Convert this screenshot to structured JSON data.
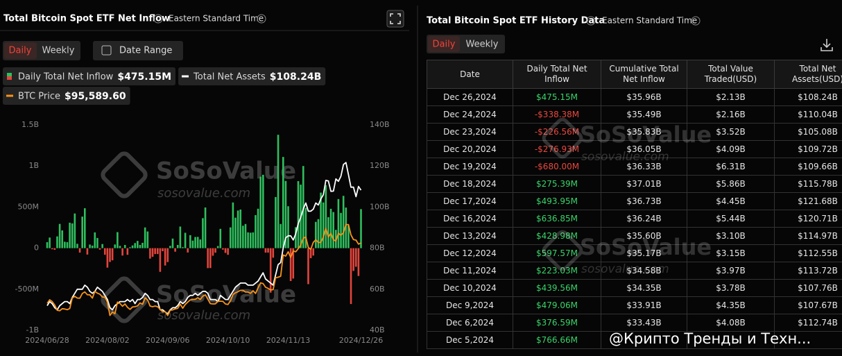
{
  "header": {
    "title": "Total Bitcoin Spot ETF Net Inflow",
    "timezone": "Eastern Standard Time",
    "tabs": [
      "Daily",
      "Weekly"
    ],
    "date_range": "Date Range"
  },
  "watermark": {
    "brand": "SoSoValue",
    "url": "sosovalue.com"
  },
  "chart_data": {
    "type": "combo",
    "categories": [
      "2024/06/28",
      null,
      null,
      null,
      null,
      null,
      null,
      null,
      null,
      null,
      null,
      null,
      null,
      null,
      null,
      null,
      null,
      null,
      null,
      null,
      null,
      null,
      null,
      null,
      "2024/08/02",
      null,
      null,
      null,
      null,
      null,
      null,
      null,
      null,
      null,
      null,
      null,
      null,
      null,
      null,
      null,
      null,
      null,
      null,
      null,
      null,
      null,
      null,
      null,
      "2024/09/06",
      null,
      null,
      null,
      null,
      null,
      null,
      null,
      null,
      null,
      null,
      null,
      null,
      null,
      null,
      null,
      null,
      null,
      null,
      null,
      null,
      null,
      null,
      null,
      "2024/10/10",
      null,
      null,
      null,
      null,
      null,
      null,
      null,
      null,
      null,
      null,
      null,
      null,
      null,
      null,
      null,
      null,
      null,
      null,
      null,
      null,
      null,
      null,
      null,
      "2024/11/13",
      null,
      null,
      null,
      null,
      null,
      null,
      null,
      null,
      null,
      null,
      null,
      null,
      null,
      null,
      null,
      null,
      null,
      null,
      null,
      null,
      null,
      null,
      null,
      null,
      null,
      null,
      null,
      null,
      "2024/12/26"
    ],
    "series": [
      {
        "name": "Daily Total Net Inflow",
        "type": "bar",
        "latest": "$475.15M",
        "color": "#2fbf5e",
        "negative_color": "#e3453d",
        "values": [
          73,
          129,
          -13,
          -20,
          143,
          295,
          216,
          78,
          73,
          310,
          301,
          422,
          53,
          -54,
          384,
          486,
          -78,
          44,
          31,
          192,
          124,
          -18,
          50,
          -80,
          -237,
          -168,
          -148,
          45,
          195,
          28,
          -90,
          39,
          -81,
          11,
          33,
          62,
          88,
          39,
          65,
          252,
          203,
          -127,
          -105,
          -72,
          -72,
          -288,
          -37,
          -211,
          -169,
          28,
          117,
          -43,
          39,
          263,
          12,
          187,
          -53,
          158,
          92,
          136,
          137,
          106,
          365,
          495,
          -243,
          -242,
          -92,
          -55,
          26,
          235,
          -18,
          -58,
          -81,
          253,
          556,
          371,
          458,
          470,
          273,
          294,
          192,
          188,
          192,
          402,
          480,
          870,
          893,
          -54,
          -54,
          -541,
          -116,
          622,
          1380,
          294,
          1110,
          818,
          510,
          -400,
          -370,
          255,
          816,
          773,
          1000,
          490,
          -438,
          -122,
          -90,
          320,
          353,
          676,
          556,
          766.66,
          376.59,
          479.06,
          439.56,
          223.03,
          597.57,
          428.98,
          636.85,
          493.95,
          275.39,
          -680,
          -276.93,
          -226.56,
          -338.38,
          475.15
        ]
      },
      {
        "name": "Total Net Assets",
        "type": "line",
        "axis": "y2",
        "latest": "$108.24B",
        "color": "#ffffff",
        "values": [
          52,
          54,
          53,
          51,
          50,
          52,
          53,
          54,
          54,
          53,
          56,
          58,
          60,
          60,
          60,
          62,
          61,
          59,
          58,
          59,
          61,
          60,
          59,
          57,
          55,
          51,
          50,
          52,
          53,
          54,
          54,
          54,
          55,
          54,
          55,
          53,
          55,
          55,
          56,
          58,
          57,
          55,
          55,
          54,
          54,
          50,
          50,
          49,
          48,
          50,
          51,
          51,
          52,
          54,
          53,
          54,
          56,
          57,
          57,
          58,
          57,
          58,
          59,
          59,
          58,
          55,
          55,
          55,
          54,
          57,
          56,
          55,
          55,
          57,
          59,
          61,
          62,
          63,
          63,
          63,
          62,
          62,
          62,
          63,
          64,
          66,
          68,
          65,
          64,
          63,
          62,
          67,
          72,
          73,
          80,
          85,
          86,
          86,
          84,
          87,
          92,
          95,
          99,
          102,
          98,
          98,
          99,
          102,
          101,
          104,
          106,
          113,
          112.74,
          107.67,
          107.76,
          113.72,
          112.55,
          114.97,
          120.71,
          121.68,
          115.78,
          109.66,
          109.72,
          105.08,
          110.04,
          108.24
        ]
      },
      {
        "name": "BTC Price",
        "type": "line",
        "axis": "y3",
        "latest": "$95,589.60",
        "color": "#f7931a",
        "values": [
          61000,
          63000,
          62000,
          60000,
          57000,
          56700,
          57900,
          57700,
          57300,
          58000,
          64000,
          65000,
          64000,
          63900,
          66600,
          67500,
          65900,
          65800,
          64000,
          67800,
          66800,
          66200,
          64600,
          64500,
          61400,
          54000,
          56000,
          55000,
          61700,
          60900,
          59300,
          60600,
          58700,
          57500,
          58900,
          59000,
          59500,
          61200,
          60400,
          64100,
          62900,
          59400,
          59000,
          59400,
          59000,
          57500,
          56100,
          56200,
          54000,
          57000,
          57200,
          57800,
          58100,
          60500,
          58200,
          60300,
          61700,
          62900,
          63200,
          63300,
          64200,
          63200,
          65100,
          65800,
          63300,
          60800,
          60600,
          60700,
          62100,
          62200,
          62100,
          60600,
          60300,
          62400,
          66000,
          67000,
          67600,
          68400,
          68400,
          67400,
          67400,
          66700,
          68200,
          66600,
          69900,
          72700,
          72300,
          70200,
          69500,
          68700,
          68800,
          75600,
          75900,
          76500,
          88700,
          88000,
          90500,
          87300,
          91000,
          90500,
          92300,
          94300,
          98300,
          98900,
          93000,
          91900,
          95900,
          97400,
          95800,
          95900,
          99000,
          103900,
          99000,
          101100,
          97400,
          96700,
          101100,
          100000,
          101400,
          106100,
          106100,
          100200,
          97500,
          97200,
          94900,
          95589.6
        ]
      }
    ],
    "ylim": [
      -1000,
      1500
    ],
    "yticks": [
      {
        "value": -1000,
        "label": "-1B"
      },
      {
        "value": -500,
        "label": "-500M"
      },
      0,
      {
        "value": 500,
        "label": "500M"
      },
      {
        "value": 1000,
        "label": "1B"
      },
      {
        "value": 1500,
        "label": "1.5B"
      }
    ],
    "y2lim": [
      40,
      140
    ],
    "y2ticks": [
      {
        "value": 40,
        "label": "40B"
      },
      {
        "value": 60,
        "label": "60B"
      },
      {
        "value": 80,
        "label": "80B"
      },
      {
        "value": 100,
        "label": "100B"
      },
      {
        "value": 120,
        "label": "120B"
      },
      {
        "value": 140,
        "label": "140B"
      }
    ],
    "y3lim": [
      45500,
      163200
    ]
  },
  "history": {
    "title": "Total Bitcoin Spot ETF History Data",
    "timezone": "Eastern Standard Time",
    "tabs": [
      "Daily",
      "Weekly"
    ],
    "columns": [
      "Date",
      "Daily Total Net Inflow",
      "Cumulative Total Net Inflow",
      "Total Value Traded(USD)",
      "Total Net Assets(USD)"
    ],
    "rows": [
      [
        "Dec 26,2024",
        "$475.15M",
        "$35.96B",
        "$2.13B",
        "$108.24B"
      ],
      [
        "Dec 24,2024",
        "-$338.38M",
        "$35.49B",
        "$2.16B",
        "$110.04B"
      ],
      [
        "Dec 23,2024",
        "-$226.56M",
        "$35.83B",
        "$3.52B",
        "$105.08B"
      ],
      [
        "Dec 20,2024",
        "-$276.93M",
        "$36.05B",
        "$4.09B",
        "$109.72B"
      ],
      [
        "Dec 19,2024",
        "-$680.00M",
        "$36.33B",
        "$6.31B",
        "$109.66B"
      ],
      [
        "Dec 18,2024",
        "$275.39M",
        "$37.01B",
        "$5.86B",
        "$115.78B"
      ],
      [
        "Dec 17,2024",
        "$493.95M",
        "$36.73B",
        "$4.45B",
        "$121.68B"
      ],
      [
        "Dec 16,2024",
        "$636.85M",
        "$36.24B",
        "$5.44B",
        "$120.71B"
      ],
      [
        "Dec 13,2024",
        "$428.98M",
        "$35.60B",
        "$3.10B",
        "$114.97B"
      ],
      [
        "Dec 12,2024",
        "$597.57M",
        "$35.17B",
        "$3.15B",
        "$112.55B"
      ],
      [
        "Dec 11,2024",
        "$223.03M",
        "$34.58B",
        "$3.97B",
        "$113.72B"
      ],
      [
        "Dec 10,2024",
        "$439.56M",
        "$34.35B",
        "$3.78B",
        "$107.76B"
      ],
      [
        "Dec 9,2024",
        "$479.06M",
        "$33.91B",
        "$4.35B",
        "$107.67B"
      ],
      [
        "Dec 6,2024",
        "$376.59M",
        "$33.43B",
        "$4.08B",
        "$112.74B"
      ],
      [
        "Dec 5,2024",
        "$766.66M"
      ]
    ]
  },
  "overlay": "@Крипто Тренды и Техн..."
}
